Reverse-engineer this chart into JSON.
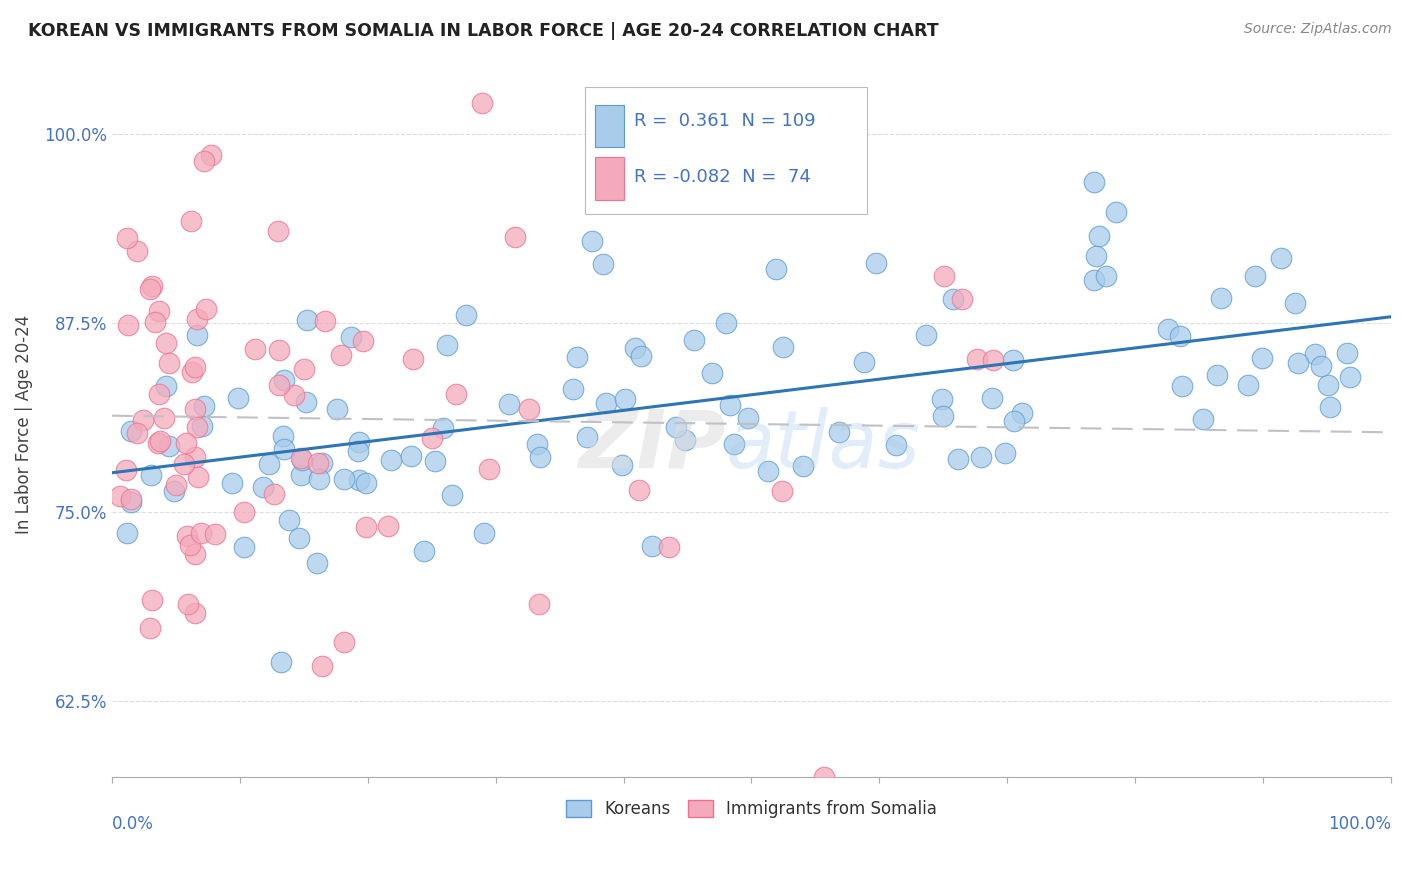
{
  "title": "KOREAN VS IMMIGRANTS FROM SOMALIA IN LABOR FORCE | AGE 20-24 CORRELATION CHART",
  "source": "Source: ZipAtlas.com",
  "ylabel": "In Labor Force | Age 20-24",
  "yticks": [
    0.625,
    0.75,
    0.875,
    1.0
  ],
  "ytick_labels": [
    "62.5%",
    "75.0%",
    "87.5%",
    "100.0%"
  ],
  "xlim": [
    0.0,
    1.0
  ],
  "ylim": [
    0.575,
    1.04
  ],
  "korean_color": "#A8CCEA",
  "somalia_color": "#F4AABB",
  "korean_edge_color": "#5B9BD5",
  "somalia_edge_color": "#F07090",
  "korean_line_color": "#2E75B6",
  "somalia_line_color": "#C0C0C8",
  "korea_R": 0.361,
  "korea_N": 109,
  "somalia_R": -0.082,
  "somalia_N": 74,
  "legend_labels": [
    "Koreans",
    "Immigrants from Somalia"
  ],
  "legend_color": "#4472C4",
  "text_color": "#4472C4"
}
